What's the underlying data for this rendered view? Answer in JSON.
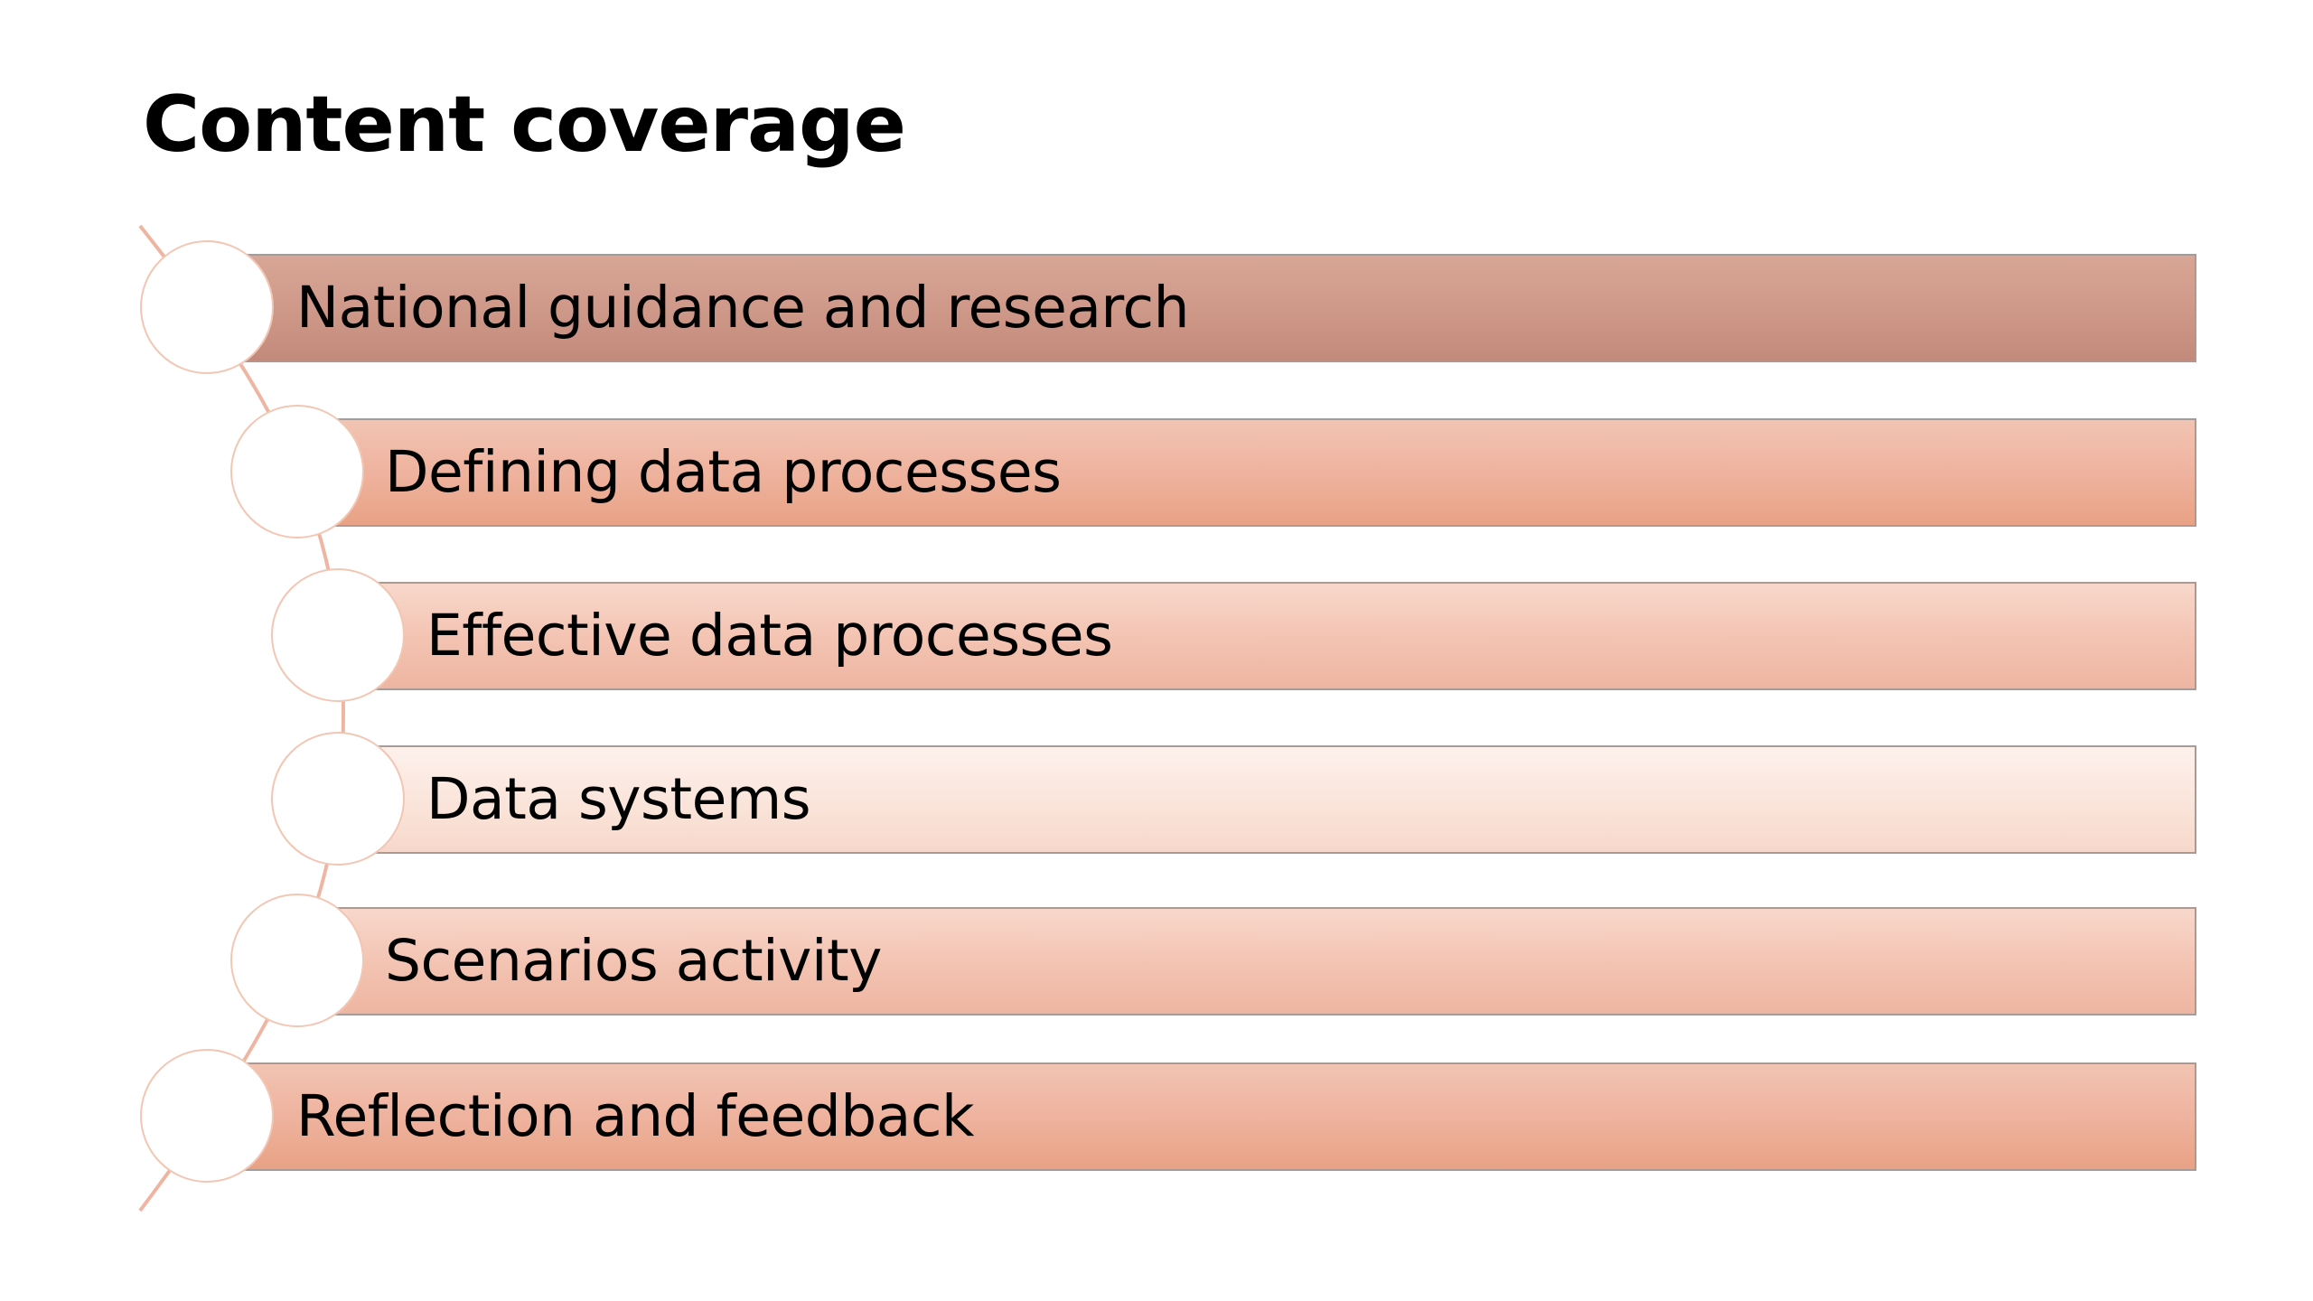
{
  "slide": {
    "title": "Content coverage"
  },
  "colors": {
    "accent": "#e8a285",
    "accent_dark": "#c28a7b",
    "accent_light": "#fae4da",
    "connector": "#eeb6a2"
  },
  "items": [
    {
      "label": "National guidance and research"
    },
    {
      "label": "Defining data processes"
    },
    {
      "label": "Effective data processes"
    },
    {
      "label": "Data systems"
    },
    {
      "label": "Scenarios activity"
    },
    {
      "label": "Reflection and feedback"
    }
  ]
}
